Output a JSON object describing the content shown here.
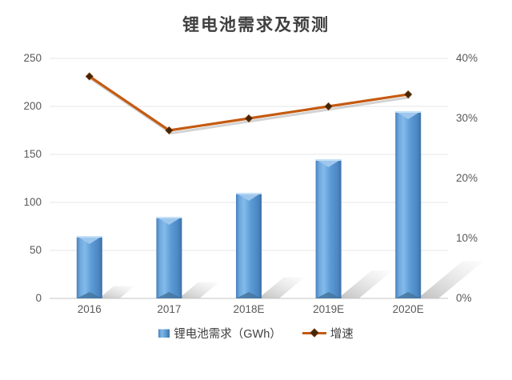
{
  "title": "锂电池需求及预测",
  "chart_data": {
    "type": "combo",
    "subtype": "bar+line",
    "categories": [
      "2016",
      "2017",
      "2018E",
      "2019E",
      "2020E"
    ],
    "series": [
      {
        "name": "锂电池需求（GWh）",
        "type": "bar",
        "axis": "left",
        "color": "#5B9BD5",
        "values": [
          65,
          85,
          110,
          145,
          195
        ]
      },
      {
        "name": "增速",
        "type": "line",
        "axis": "right",
        "color": "#C55A11",
        "marker": "diamond",
        "marker_color": "#432506",
        "values_percent": [
          37,
          28,
          30,
          32,
          34
        ]
      }
    ],
    "left_axis": {
      "ticks": [
        0,
        50,
        100,
        150,
        200,
        250
      ],
      "min": 0,
      "max": 250
    },
    "right_axis": {
      "tick_labels": [
        "0%",
        "10%",
        "20%",
        "30%",
        "40%"
      ],
      "min_percent": 0,
      "max_percent": 40
    },
    "grid": true,
    "legend_position": "bottom",
    "style_notes": "3d beveled blue bars with diagonal gray floor shadows, orange line with drop shadow"
  },
  "colors": {
    "title": "#3F3F3F",
    "axis_text": "#595959",
    "gridline": "#E4E4E4",
    "axis_line": "#C4C4C4",
    "bar_fill": "#5B9BD5",
    "line_stroke": "#C55A11"
  }
}
